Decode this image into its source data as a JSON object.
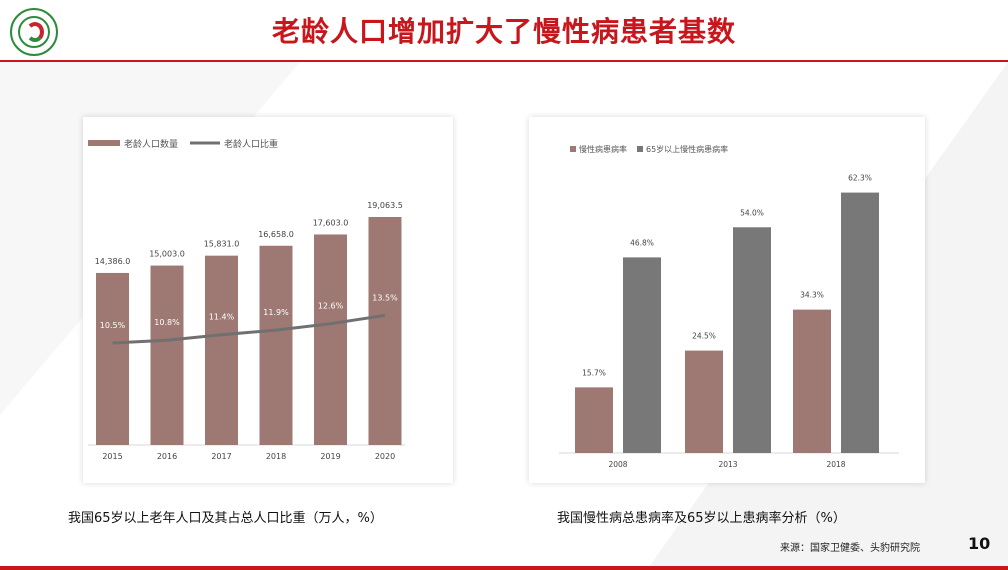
{
  "slide": {
    "title": "老龄人口增加扩大了慢性病患者基数",
    "page_number": "10",
    "source": "来源：国家卫健委、头豹研究院",
    "colors": {
      "accent": "#c8161d",
      "bar_primary": "#9e7873",
      "bar_secondary": "#787878",
      "line": "#707070"
    }
  },
  "left_caption": "我国65岁以上老年人口及其占总人口比重（万人，%）",
  "right_caption": "我国慢性病总患病率及65岁以上患病率分析（%）",
  "chart_data": [
    {
      "type": "bar",
      "categories": [
        "2015",
        "2016",
        "2017",
        "2018",
        "2019",
        "2020"
      ],
      "series": [
        {
          "name": "老龄人口数量",
          "kind": "bar",
          "values": [
            14386.0,
            15003.0,
            15831.0,
            16658.0,
            17603.0,
            19063.5
          ],
          "labels": [
            "14,386.0",
            "15,003.0",
            "15,831.0",
            "16,658.0",
            "17,603.0",
            "19,063.5"
          ]
        },
        {
          "name": "老龄人口比重",
          "kind": "line",
          "values": [
            10.5,
            10.8,
            11.4,
            11.9,
            12.6,
            13.5
          ],
          "labels": [
            "10.5%",
            "10.8%",
            "11.4%",
            "11.9%",
            "12.6%",
            "13.5%"
          ]
        }
      ],
      "legend": "top-left"
    },
    {
      "type": "bar",
      "categories": [
        "2008",
        "2013",
        "2018"
      ],
      "series": [
        {
          "name": "慢性病患病率",
          "values": [
            15.7,
            24.5,
            34.3
          ],
          "labels": [
            "15.7%",
            "24.5%",
            "34.3%"
          ]
        },
        {
          "name": "65岁以上慢性病患病率",
          "values": [
            46.8,
            54.0,
            62.3
          ],
          "labels": [
            "46.8%",
            "54.0%",
            "62.3%"
          ]
        }
      ],
      "legend": "top-left"
    }
  ]
}
